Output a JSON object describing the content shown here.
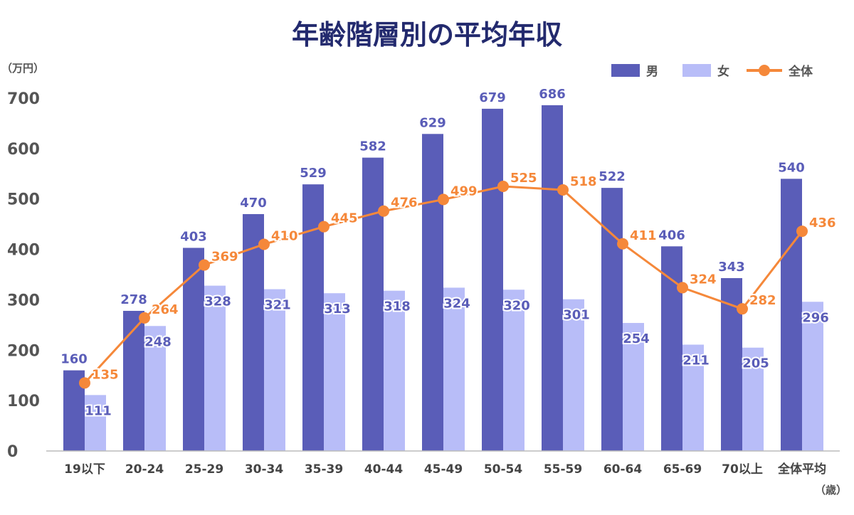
{
  "chart_data": {
    "type": "bar",
    "title": "年齢階層別の平均年収",
    "ylabel": "（万円）",
    "xlabel": "（歳）",
    "ylim": [
      0,
      700
    ],
    "yticks": [
      0,
      100,
      200,
      300,
      400,
      500,
      600,
      700
    ],
    "grid": false,
    "legend_position": "top-right",
    "categories": [
      "19以下",
      "20-24",
      "25-29",
      "30-34",
      "35-39",
      "40-44",
      "45-49",
      "50-54",
      "55-59",
      "60-64",
      "65-69",
      "70以上",
      "全体平均"
    ],
    "series": [
      {
        "name": "男",
        "type": "bar",
        "color": "#5a5db8",
        "values": [
          160,
          278,
          403,
          470,
          529,
          582,
          629,
          679,
          686,
          522,
          406,
          343,
          540
        ]
      },
      {
        "name": "女",
        "type": "bar",
        "color": "#b8bdf8",
        "values": [
          111,
          248,
          328,
          321,
          313,
          318,
          324,
          320,
          301,
          254,
          211,
          205,
          296
        ]
      },
      {
        "name": "全体",
        "type": "line",
        "color": "#f5883a",
        "values": [
          135,
          264,
          369,
          410,
          445,
          476,
          499,
          525,
          518,
          411,
          324,
          282,
          436
        ]
      }
    ]
  }
}
